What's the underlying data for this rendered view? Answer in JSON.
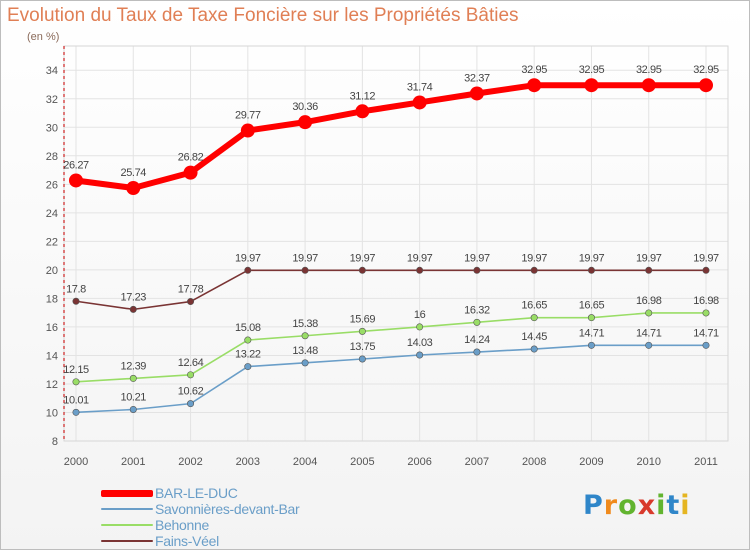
{
  "header": {
    "title": "Evolution du Taux de Taxe Foncière sur les Propriétés Bâties",
    "unit": "(en %)"
  },
  "logo": {
    "text": "Proxiti"
  },
  "chart_data": {
    "type": "line",
    "title": "Evolution du Taux de Taxe Foncière sur les Propriétés Bâties",
    "ylabel": "(en %)",
    "xlabel": "",
    "x": [
      "2000",
      "2001",
      "2002",
      "2003",
      "2004",
      "2005",
      "2006",
      "2007",
      "2008",
      "2009",
      "2010",
      "2011"
    ],
    "ylim": [
      8,
      34
    ],
    "yticks": [
      8,
      10,
      12,
      14,
      16,
      18,
      20,
      22,
      24,
      26,
      28,
      30,
      32,
      34
    ],
    "grid": true,
    "legend": "bottom-left",
    "series": [
      {
        "name": "BAR-LE-DUC",
        "color": "#ff0000",
        "values": [
          26.27,
          25.74,
          26.82,
          29.77,
          30.36,
          31.12,
          31.74,
          32.37,
          32.95,
          32.95,
          32.95,
          32.95
        ],
        "labels": [
          "26.27",
          "25.74",
          "26.82",
          "29.77",
          "30.36",
          "31.12",
          "31.74",
          "32.37",
          "32.95",
          "32.95",
          "32.95",
          "32.95"
        ]
      },
      {
        "name": "Savonnières-devant-Bar",
        "color": "#6a9ec8",
        "values": [
          10.01,
          10.21,
          10.62,
          13.22,
          13.48,
          13.75,
          14.03,
          14.24,
          14.45,
          14.71,
          14.71,
          14.71
        ],
        "labels": [
          "10.01",
          "10.21",
          "10.62",
          "13.22",
          "13.48",
          "13.75",
          "14.03",
          "14.24",
          "14.45",
          "14.71",
          "14.71",
          "14.71"
        ]
      },
      {
        "name": "Behonne",
        "color": "#99dd66",
        "values": [
          12.15,
          12.39,
          12.64,
          15.08,
          15.38,
          15.69,
          16,
          16.32,
          16.65,
          16.65,
          16.98,
          16.98
        ],
        "labels": [
          "12.15",
          "12.39",
          "12.64",
          "15.08",
          "15.38",
          "15.69",
          "16",
          "16.32",
          "16.65",
          "16.65",
          "16.98",
          "16.98"
        ]
      },
      {
        "name": "Fains-Véel",
        "color": "#7a3434",
        "values": [
          17.8,
          17.23,
          17.78,
          19.97,
          19.97,
          19.97,
          19.97,
          19.97,
          19.97,
          19.97,
          19.97,
          19.97
        ],
        "labels": [
          "17.8",
          "17.23",
          "17.78",
          "19.97",
          "19.97",
          "19.97",
          "19.97",
          "19.97",
          "19.97",
          "19.97",
          "19.97",
          "19.97"
        ]
      }
    ]
  }
}
